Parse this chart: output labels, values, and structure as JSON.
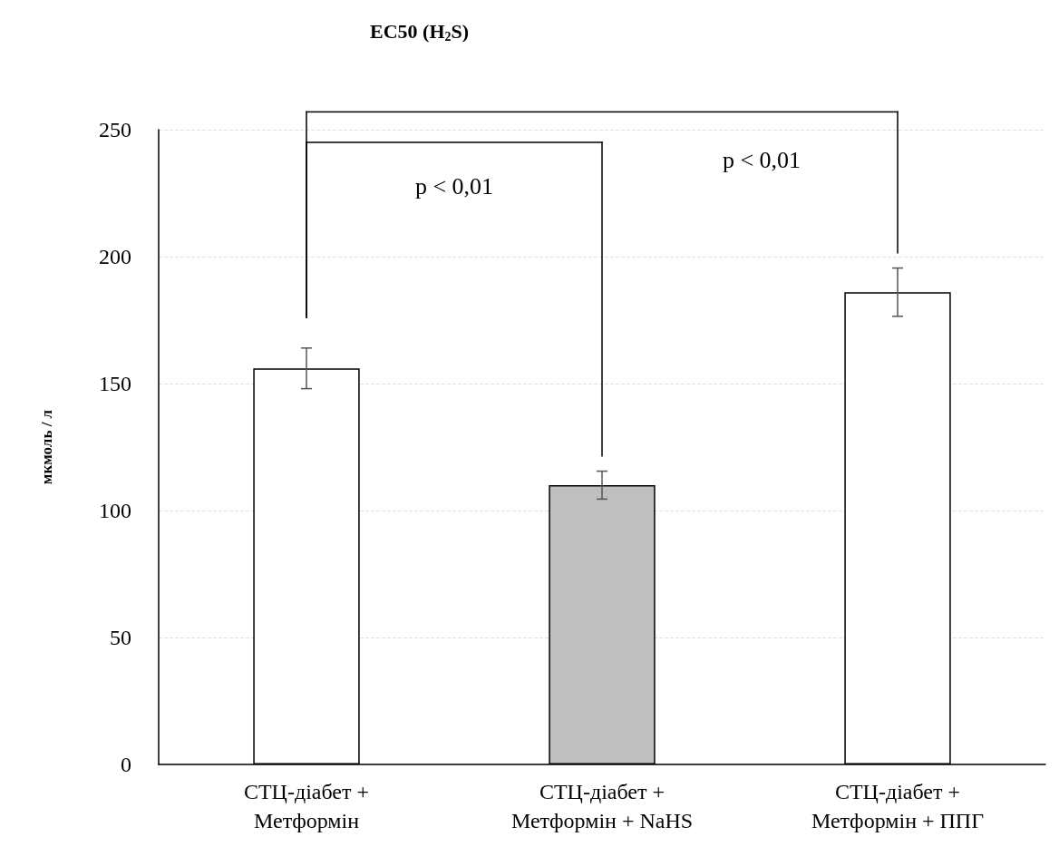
{
  "chart_data": {
    "type": "bar",
    "title": "EC50 (H$_{2}$S)",
    "ylabel": "мкмоль / л",
    "categories": [
      "СТЦ-діабет +\nМетформін",
      "СТЦ-діабет +\nМетформін + NaHS",
      "СТЦ-діабет +\nМетформін + ППГ"
    ],
    "values": [
      156,
      110,
      186
    ],
    "errors": [
      8,
      5.5,
      9.5
    ],
    "colors": [
      "#ffffff",
      "#bfbfbf",
      "#ffffff"
    ],
    "ylim": [
      0,
      250
    ],
    "yticks": [
      0,
      50,
      100,
      150,
      200,
      250
    ],
    "grid": "y",
    "annotations": [
      "p < 0,01",
      "p < 0,01"
    ]
  }
}
